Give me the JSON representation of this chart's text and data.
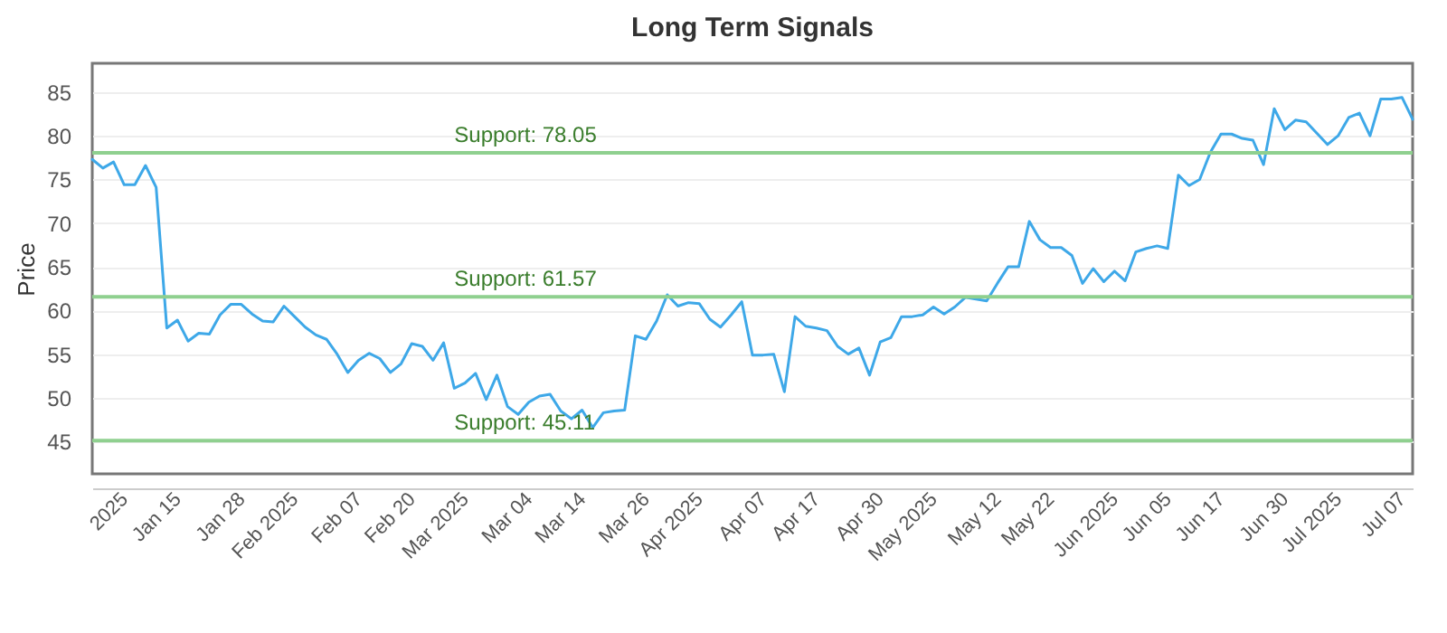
{
  "chart_data": {
    "type": "line",
    "title": "Long Term Signals",
    "ylabel": "Price",
    "categories": [
      null,
      null,
      null,
      "2025",
      null,
      null,
      null,
      null,
      "Jan 15",
      null,
      null,
      null,
      null,
      null,
      "Jan 28",
      null,
      null,
      null,
      null,
      "Feb 2025",
      null,
      null,
      null,
      null,
      null,
      "Feb 07",
      null,
      null,
      null,
      null,
      "Feb 20",
      null,
      null,
      null,
      null,
      "Mar 2025",
      null,
      null,
      null,
      null,
      null,
      "Mar 04",
      null,
      null,
      null,
      null,
      "Mar 14",
      null,
      null,
      null,
      null,
      null,
      "Mar 26",
      null,
      null,
      null,
      null,
      "Apr 2025",
      null,
      null,
      null,
      null,
      null,
      "Apr 07",
      null,
      null,
      null,
      null,
      "Apr 17",
      null,
      null,
      null,
      null,
      null,
      "Apr 30",
      null,
      null,
      null,
      null,
      "May 2025",
      null,
      null,
      null,
      null,
      null,
      "May 12",
      null,
      null,
      null,
      null,
      "May 22",
      null,
      null,
      null,
      null,
      null,
      "Jun 2025",
      null,
      null,
      null,
      null,
      "Jun 05",
      null,
      null,
      null,
      null,
      "Jun 17",
      null,
      null,
      null,
      null,
      null,
      "Jun 30",
      null,
      null,
      null,
      null,
      "Jul 2025",
      null,
      null,
      null,
      null,
      null,
      "Jul 07",
      null
    ],
    "series": [
      {
        "color": "#3ea8e8",
        "values": [
          77.3,
          76.3,
          77.0,
          74.4,
          74.4,
          76.6,
          74.1,
          58.0,
          58.9,
          56.5,
          57.4,
          57.3,
          59.5,
          60.7,
          60.7,
          59.6,
          58.8,
          58.7,
          60.5,
          59.3,
          58.1,
          57.2,
          56.7,
          55.0,
          52.9,
          54.3,
          55.1,
          54.5,
          52.9,
          53.9,
          56.2,
          55.9,
          54.3,
          56.3,
          51.1,
          51.7,
          52.8,
          49.8,
          52.6,
          49.0,
          48.1,
          49.5,
          50.2,
          50.4,
          48.5,
          47.6,
          48.6,
          46.6,
          48.3,
          48.5,
          48.6,
          57.1,
          56.7,
          58.8,
          61.8,
          60.5,
          60.9,
          60.8,
          59.0,
          58.1,
          59.5,
          61.0,
          54.9,
          54.9,
          55.0,
          50.7,
          59.3,
          58.2,
          58.0,
          57.7,
          55.9,
          55.0,
          55.7,
          52.6,
          56.4,
          56.9,
          59.3,
          59.3,
          59.5,
          60.4,
          59.6,
          60.4,
          61.5,
          61.3,
          61.1,
          63.1,
          65.0,
          65.0,
          70.2,
          68.1,
          67.2,
          67.2,
          66.3,
          63.1,
          64.8,
          63.3,
          64.5,
          63.4,
          66.7,
          67.1,
          67.4,
          67.1,
          75.5,
          74.3,
          75.0,
          78.1,
          80.2,
          80.2,
          79.7,
          79.5,
          76.7,
          83.1,
          80.7,
          81.8,
          81.6,
          80.3,
          79.0,
          80.0,
          82.1,
          82.6,
          80.0,
          84.2,
          84.2,
          84.4,
          81.9
        ]
      }
    ],
    "ylim": [
      41.3,
      88.3
    ],
    "yticks": [
      45,
      50,
      55,
      60,
      65,
      70,
      75,
      80,
      85
    ],
    "grid": "y",
    "marker": "none",
    "line_style": "solid",
    "ref_lines": [
      {
        "axis": "y",
        "value": 78.05,
        "label": "Support: 78.05",
        "color": "#8fd08f"
      },
      {
        "axis": "y",
        "value": 61.57,
        "label": "Support: 61.57",
        "color": "#8fd08f"
      },
      {
        "axis": "y",
        "value": 45.11,
        "label": "Support: 45.11",
        "color": "#8fd08f"
      }
    ]
  }
}
